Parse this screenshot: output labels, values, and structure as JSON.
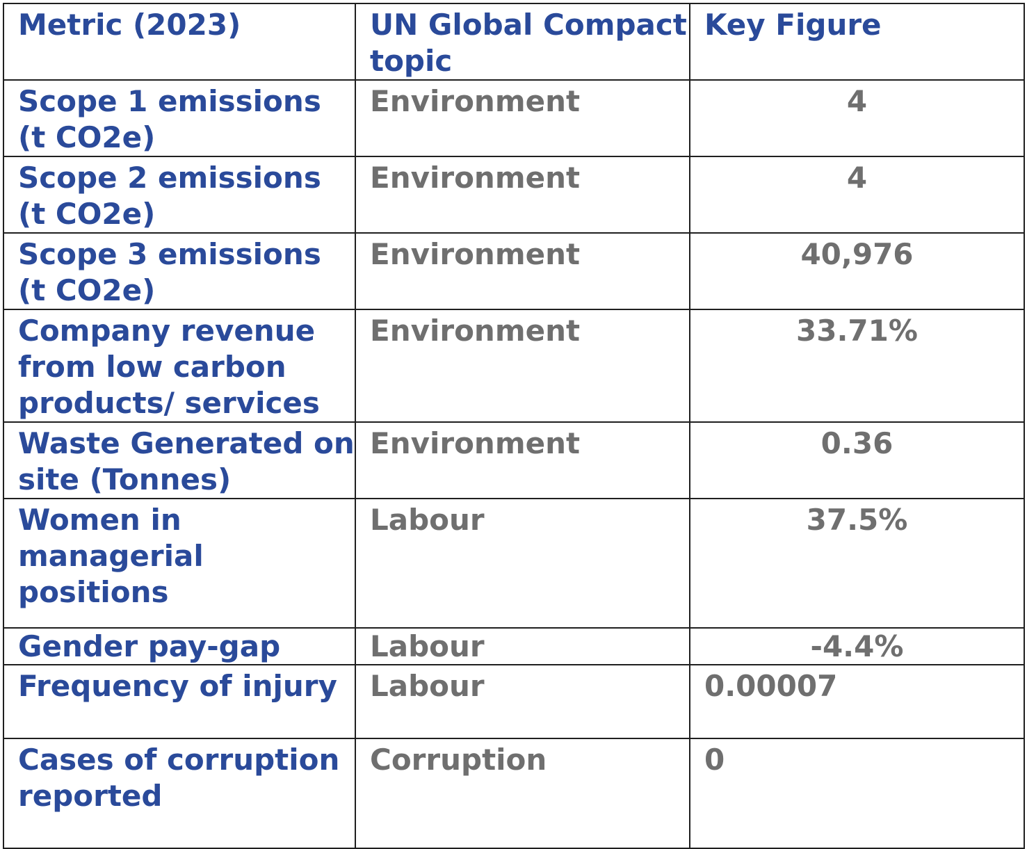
{
  "table": {
    "headers": [
      "Metric (2023)",
      "UN Global Compact topic",
      "Key Figure"
    ],
    "rows": [
      {
        "metric": "Scope 1 emissions (t CO2e)",
        "topic": "Environment",
        "figure": "4"
      },
      {
        "metric": "Scope 2 emissions (t CO2e)",
        "topic": "Environment",
        "figure": "4"
      },
      {
        "metric": "Scope 3 emissions (t CO2e)",
        "topic": "Environment",
        "figure": "40,976"
      },
      {
        "metric": "Company revenue from low carbon products/ services",
        "topic": "Environment",
        "figure": "33.71%"
      },
      {
        "metric": "Waste Generated on site (Tonnes)",
        "topic": "Environment",
        "figure": "0.36"
      },
      {
        "metric": "Women in managerial positions",
        "topic": "Labour",
        "figure": "37.5%"
      },
      {
        "metric": "Gender pay-gap",
        "topic": "Labour",
        "figure": "-4.4%"
      },
      {
        "metric": "Frequency of injury",
        "topic": "Labour",
        "figure": "0.00007"
      },
      {
        "metric": "Cases of corruption reported",
        "topic": "Corruption",
        "figure": "0"
      }
    ]
  },
  "colors": {
    "metric_text": "#2a4a9a",
    "value_text": "#6f6f6f",
    "border": "#1f1f1f"
  }
}
